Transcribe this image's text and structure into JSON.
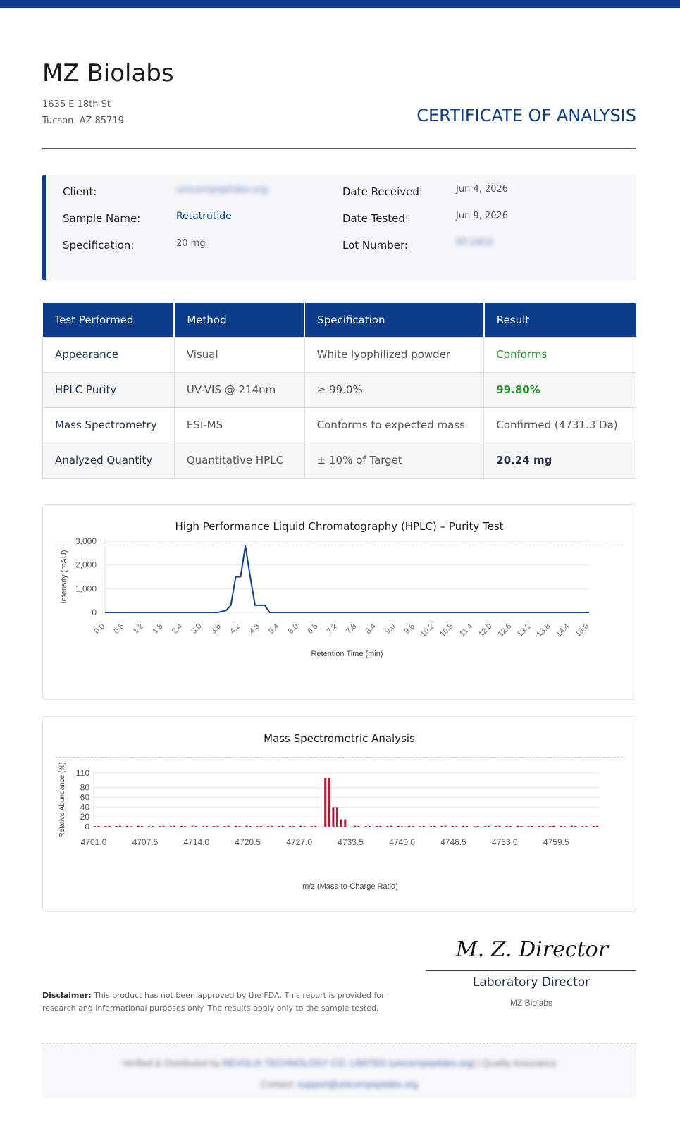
{
  "header": {
    "company": "MZ Biolabs",
    "address_line1": "1635 E 18th St",
    "address_line2": "Tucson, AZ 85719",
    "doc_title": "CERTIFICATE OF ANALYSIS"
  },
  "info": {
    "client_label": "Client:",
    "client_value": "unicornpeptides.org",
    "sample_label": "Sample Name:",
    "sample_value": "Retatrutide",
    "spec_label": "Specification:",
    "spec_value": "20 mg",
    "received_label": "Date Received:",
    "received_value": "Jun 4, 2026",
    "tested_label": "Date Tested:",
    "tested_value": "Jun 9, 2026",
    "lot_label": "Lot Number:",
    "lot_value": "RT-2403"
  },
  "tests": {
    "headers": [
      "Test Performed",
      "Method",
      "Specification",
      "Result"
    ],
    "rows": [
      [
        "Appearance",
        "Visual",
        "White lyophilized powder",
        "Conforms"
      ],
      [
        "HPLC Purity",
        "UV-VIS @ 214nm",
        "≥ 99.0%",
        "99.80%"
      ],
      [
        "Mass Spectrometry",
        "ESI-MS",
        "Conforms to expected mass",
        "Confirmed (4731.3 Da)"
      ],
      [
        "Analyzed Quantity",
        "Quantitative HPLC",
        "± 10% of Target",
        "20.24 mg"
      ]
    ]
  },
  "chart_data": [
    {
      "type": "line",
      "title": "High Performance Liquid Chromatography (HPLC)  –  Purity Test",
      "xlabel": "Retention Time (min)",
      "ylabel": "Intensity (mAU)",
      "xlim": [
        0,
        15
      ],
      "ylim": [
        0,
        3000
      ],
      "yticks": [
        "0",
        "1,000",
        "2,000",
        "3,000"
      ],
      "xticks": [
        "0.0",
        "0.6",
        "1.2",
        "1.8",
        "2.4",
        "3.0",
        "3.6",
        "4.2",
        "4.8",
        "5.4",
        "6.0",
        "6.6",
        "7.2",
        "7.8",
        "8.4",
        "9.0",
        "9.6",
        "10.2",
        "10.8",
        "11.4",
        "12.0",
        "12.6",
        "13.2",
        "13.8",
        "14.4",
        "15.0"
      ],
      "grid": true,
      "x": [
        0,
        3.5,
        3.75,
        3.9,
        4.05,
        4.2,
        4.35,
        4.5,
        4.65,
        4.8,
        4.95,
        5.1,
        15
      ],
      "y": [
        0,
        0,
        80,
        300,
        1500,
        1500,
        2800,
        1500,
        300,
        300,
        300,
        0,
        0
      ]
    },
    {
      "type": "bar",
      "title": "Mass Spectrometric Analysis",
      "xlabel": "m/z (Mass-to-Charge Ratio)",
      "ylabel": "Relative Abundance (%)",
      "xlim": [
        4701.0,
        4765.0
      ],
      "ylim": [
        0,
        110
      ],
      "xticks": [
        "4701.0",
        "4707.5",
        "4714.0",
        "4720.5",
        "4727.0",
        "4733.5",
        "4740.0",
        "4746.5",
        "4753.0",
        "4759.5"
      ],
      "yticks": [
        "0",
        "20",
        "40",
        "60",
        "80",
        "110"
      ],
      "grid": true,
      "peaks": [
        {
          "x": 4730.3,
          "y": 100
        },
        {
          "x": 4730.8,
          "y": 100
        },
        {
          "x": 4731.3,
          "y": 40
        },
        {
          "x": 4731.8,
          "y": 40
        },
        {
          "x": 4732.3,
          "y": 15
        },
        {
          "x": 4732.8,
          "y": 15
        }
      ],
      "baseline": 2
    }
  ],
  "signature": {
    "script": "M. Z. Director",
    "title": "Laboratory Director",
    "company": "MZ Biolabs"
  },
  "disclaimer": {
    "label": "Disclaimer:",
    "text": " This product has not been approved by the FDA. This report is provided for research and informational purposes only. The results apply only to the sample tested."
  },
  "footer": {
    "line1_prefix": "Verified & Distributed by ",
    "line1_link": "REVOLIX TECHNOLOGY CO. LIMITED (unicornpeptides.org)",
    "line1_suffix": "  |  Quality Assurance",
    "line2_prefix": "Contact: ",
    "line2_link": "support@unicornpeptides.org"
  },
  "colors": {
    "brand": "#0b3d8c",
    "pass": "#1f9a2a",
    "ms_bar": "#c8102e"
  }
}
